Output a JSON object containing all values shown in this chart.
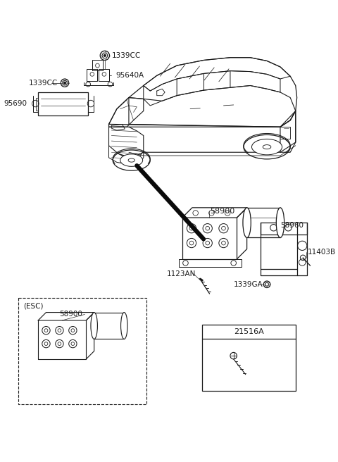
{
  "bg_color": "#ffffff",
  "lc": "#1a1a1a",
  "lw": 0.9,
  "fs": 7.5,
  "labels": {
    "1339CC_top": "1339CC",
    "1339CC_left": "1339CC",
    "95640A": "95640A",
    "95690": "95690",
    "58900_main": "58900",
    "58960": "58960",
    "1123AN": "1123AN",
    "11403B": "11403B",
    "1339GA": "1339GA",
    "58900_esc": "58900",
    "ESC": "(ESC)",
    "21516A": "21516A"
  }
}
